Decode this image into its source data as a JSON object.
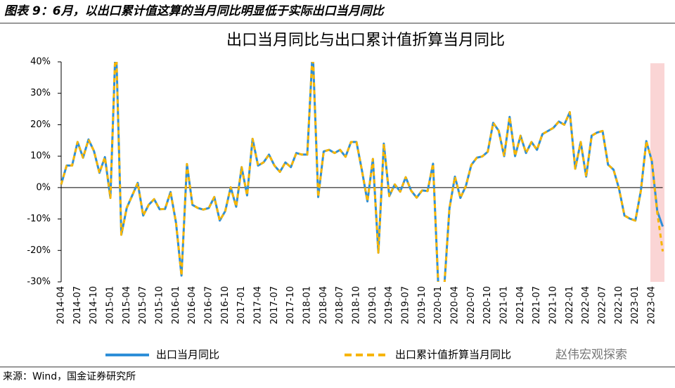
{
  "header": "图表 9：6月，以出口累计值这算的当月同比明显低于实际出口当月同比",
  "source": "来源：Wind，国金证券研究所",
  "watermark": "赵伟宏观探索",
  "chart_data": {
    "type": "line",
    "title": "出口当月同比与出口累计值折算当月同比",
    "categories": [
      "2014-04",
      null,
      null,
      "2014-07",
      null,
      null,
      "2014-10",
      null,
      null,
      "2015-01",
      null,
      null,
      "2015-04",
      null,
      null,
      "2015-07",
      null,
      null,
      "2015-10",
      null,
      null,
      "2016-01",
      null,
      null,
      "2016-04",
      null,
      null,
      "2016-07",
      null,
      null,
      "2016-10",
      null,
      null,
      "2017-01",
      null,
      null,
      "2017-04",
      null,
      null,
      "2017-07",
      null,
      null,
      "2017-10",
      null,
      null,
      "2018-01",
      null,
      null,
      "2018-04",
      null,
      null,
      "2018-07",
      null,
      null,
      "2018-10",
      null,
      null,
      "2019-01",
      null,
      null,
      "2019-04",
      null,
      null,
      "2019-07",
      null,
      null,
      "2019-10",
      null,
      null,
      "2020-01",
      null,
      null,
      "2020-04",
      null,
      null,
      "2020-07",
      null,
      null,
      "2020-10",
      null,
      null,
      "2021-01",
      null,
      null,
      "2021-04",
      null,
      null,
      "2021-07",
      null,
      null,
      "2021-10",
      null,
      null,
      "2022-01",
      null,
      null,
      "2022-04",
      null,
      null,
      "2022-07",
      null,
      null,
      "2022-10",
      null,
      null,
      "2023-01",
      null,
      null,
      "2023-04",
      null,
      null
    ],
    "series": [
      {
        "name": "出口当月同比",
        "color": "#2e8fd8",
        "dashed": false,
        "values": [
          1,
          7,
          7,
          14.5,
          9.5,
          15.3,
          11.6,
          4.7,
          9.7,
          -3.3,
          48,
          -15,
          -6.4,
          -2.5,
          1.5,
          -8.9,
          -5.5,
          -3.7,
          -6.9,
          -6.8,
          -1.4,
          -11.2,
          -28,
          7.5,
          -5.5,
          -6.5,
          -7,
          -6.5,
          -3,
          -10.5,
          -7.5,
          0.1,
          -6.1,
          6.5,
          -2.5,
          15.5,
          7,
          8,
          10.5,
          7,
          5,
          8,
          6.5,
          11,
          10.5,
          10.5,
          44,
          -3,
          11.5,
          12,
          11,
          12,
          9.8,
          14.5,
          14.5,
          5.4,
          -4.4,
          9.1,
          -20.7,
          14,
          -2.7,
          1,
          -1.3,
          3.3,
          -1,
          -3.2,
          -0.9,
          -1.1,
          7.6,
          -33,
          -33,
          -6.6,
          3.5,
          -3.3,
          0.5,
          7.2,
          9.5,
          9.9,
          11.4,
          20.6,
          18.1,
          10,
          22.5,
          10,
          16.5,
          11,
          14.5,
          12,
          17,
          18,
          19,
          21,
          20,
          24,
          6,
          14.5,
          3.5,
          16.5,
          17.5,
          18,
          7.3,
          5.7,
          -0.3,
          -8.9,
          -9.9,
          -10.5,
          -1,
          14.8,
          8.5,
          -7.5,
          -12.4
        ]
      },
      {
        "name": "出口累计值折算当月同比",
        "color": "#f7b500",
        "dashed": true,
        "values": [
          1,
          7,
          7,
          14.5,
          9.5,
          15.3,
          11.6,
          4.7,
          9.7,
          -3.3,
          48,
          -15,
          -6.4,
          -2.5,
          1.5,
          -8.9,
          -5.5,
          -3.7,
          -6.9,
          -6.8,
          -1.4,
          -11.2,
          -28,
          7.5,
          -5.5,
          -6.5,
          -7,
          -6.5,
          -3,
          -10.5,
          -7.5,
          0.1,
          -6.1,
          6.5,
          -2.5,
          15.5,
          7,
          8,
          10.5,
          7,
          5,
          8,
          6.5,
          11,
          10.5,
          10.5,
          44,
          -3,
          11.5,
          12,
          11,
          12,
          9.8,
          14.5,
          14.5,
          5.4,
          -4.4,
          9.1,
          -20.7,
          14,
          -2.7,
          1,
          -1.3,
          3.3,
          -1,
          -3.2,
          -0.9,
          -1.1,
          7.6,
          -33,
          -33,
          -6.6,
          3.5,
          -3.3,
          0.5,
          7.2,
          9.5,
          9.9,
          11.4,
          20.6,
          18.1,
          10,
          22.5,
          10,
          16.5,
          11,
          14.5,
          12,
          17,
          18,
          19,
          21,
          20,
          24,
          6,
          14.5,
          3.5,
          16.5,
          17.5,
          18,
          7.3,
          5.7,
          -0.3,
          -8.9,
          -9.9,
          -10.5,
          -1,
          14.8,
          8.5,
          -8,
          -20.3
        ]
      }
    ],
    "ylim": [
      -30,
      40
    ],
    "yticks": [
      {
        "value": -30,
        "label": "-30%"
      },
      {
        "value": -20,
        "label": "-20%"
      },
      {
        "value": -10,
        "label": "-10%"
      },
      {
        "value": 0,
        "label": "0%"
      },
      {
        "value": 10,
        "label": "10%"
      },
      {
        "value": 20,
        "label": "20%"
      },
      {
        "value": 30,
        "label": "30%"
      },
      {
        "value": 40,
        "label": "40%"
      }
    ],
    "grid": false
  }
}
